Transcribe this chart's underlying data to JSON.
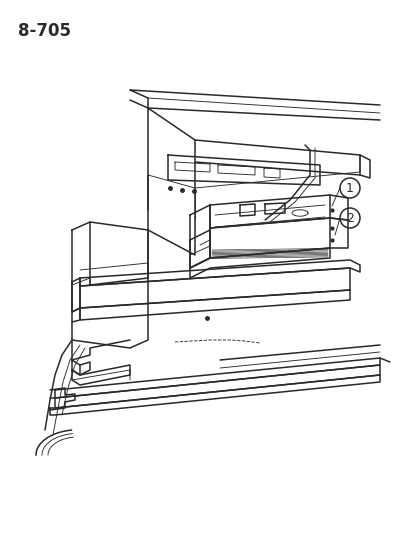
{
  "page_label": "8-705",
  "background_color": "#ffffff",
  "line_color": "#2a2a2a",
  "figsize": [
    4.14,
    5.33
  ],
  "dpi": 100,
  "page_label_fontsize": 12,
  "lw_main": 1.1,
  "lw_thin": 0.65,
  "lw_thick": 1.4
}
